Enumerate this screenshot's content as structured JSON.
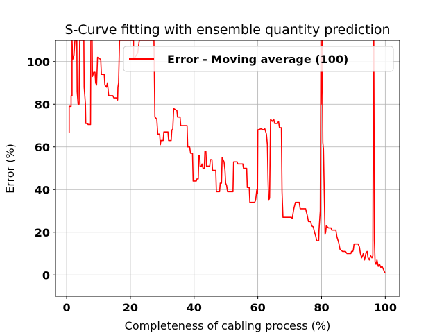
{
  "chart_data": {
    "type": "line",
    "title": "S-Curve fitting with ensemble quantity prediction",
    "xlabel": "Completeness of cabling process (%)",
    "ylabel": "Error (%)",
    "xlim": [
      -3.5,
      104.5
    ],
    "ylim": [
      -10,
      110
    ],
    "xticks": [
      0,
      20,
      40,
      60,
      80,
      100
    ],
    "yticks": [
      0,
      20,
      40,
      60,
      80,
      100
    ],
    "grid": true,
    "legend_position": "top-right",
    "series": [
      {
        "name": "Error - Moving average (100)",
        "color": "#ff0000",
        "points": [
          [
            0.8,
            66.5
          ],
          [
            0.8,
            79
          ],
          [
            1.4,
            79
          ],
          [
            1.4,
            84
          ],
          [
            1.7,
            84
          ],
          [
            1.7,
            110
          ],
          [
            1.9,
            101
          ],
          [
            2.3,
            103
          ],
          [
            2.6,
            110
          ],
          [
            3.2,
            110
          ],
          [
            3.3,
            86
          ],
          [
            3.6,
            80
          ],
          [
            3.9,
            80
          ],
          [
            4.1,
            110
          ],
          [
            5.4,
            110
          ],
          [
            5.5,
            88
          ],
          [
            5.9,
            80
          ],
          [
            6.0,
            71
          ],
          [
            6.6,
            71
          ],
          [
            6.7,
            70.5
          ],
          [
            7.5,
            70.5
          ],
          [
            7.6,
            110
          ],
          [
            8.0,
            110
          ],
          [
            8.1,
            93
          ],
          [
            8.5,
            95
          ],
          [
            8.9,
            95
          ],
          [
            9.1,
            90
          ],
          [
            9.4,
            89
          ],
          [
            9.7,
            102
          ],
          [
            10.7,
            101
          ],
          [
            10.9,
            94
          ],
          [
            11.8,
            94
          ],
          [
            12.0,
            89
          ],
          [
            12.5,
            88
          ],
          [
            12.8,
            90
          ],
          [
            13.2,
            84
          ],
          [
            14.5,
            84
          ],
          [
            14.8,
            83
          ],
          [
            15.6,
            83
          ],
          [
            16.0,
            82
          ],
          [
            16.1,
            88
          ],
          [
            16.3,
            90
          ],
          [
            16.6,
            110
          ],
          [
            21.0,
            110
          ],
          [
            21.0,
            101
          ],
          [
            22.3,
            104
          ],
          [
            22.8,
            110
          ],
          [
            27.4,
            110
          ],
          [
            27.7,
            74
          ],
          [
            28.3,
            73
          ],
          [
            28.6,
            66
          ],
          [
            29.2,
            66
          ],
          [
            29.4,
            61
          ],
          [
            29.6,
            63
          ],
          [
            30.3,
            63
          ],
          [
            30.5,
            67
          ],
          [
            31.8,
            67
          ],
          [
            32.0,
            63
          ],
          [
            32.8,
            63
          ],
          [
            33.0,
            68
          ],
          [
            33.3,
            68
          ],
          [
            33.6,
            78
          ],
          [
            34.6,
            77
          ],
          [
            34.8,
            74
          ],
          [
            35.6,
            74
          ],
          [
            35.8,
            70
          ],
          [
            37.8,
            70
          ],
          [
            38.0,
            60
          ],
          [
            38.6,
            60
          ],
          [
            38.9,
            57
          ],
          [
            39.5,
            57
          ],
          [
            39.7,
            44
          ],
          [
            40.7,
            44
          ],
          [
            40.9,
            45
          ],
          [
            41.3,
            45
          ],
          [
            41.5,
            56
          ],
          [
            41.8,
            56
          ],
          [
            41.9,
            51
          ],
          [
            42.3,
            51
          ],
          [
            42.5,
            52
          ],
          [
            42.8,
            50
          ],
          [
            43.2,
            50
          ],
          [
            43.4,
            58
          ],
          [
            43.7,
            58
          ],
          [
            43.9,
            51
          ],
          [
            44.9,
            51
          ],
          [
            45.1,
            54
          ],
          [
            45.6,
            54
          ],
          [
            45.8,
            49
          ],
          [
            46.8,
            49
          ],
          [
            47.0,
            39
          ],
          [
            48.0,
            39
          ],
          [
            48.2,
            43
          ],
          [
            48.6,
            43
          ],
          [
            48.8,
            55
          ],
          [
            49.4,
            53
          ],
          [
            49.7,
            49
          ],
          [
            49.9,
            43
          ],
          [
            50.2,
            42
          ],
          [
            50.5,
            39
          ],
          [
            52.2,
            39
          ],
          [
            52.4,
            53
          ],
          [
            53.5,
            53
          ],
          [
            53.7,
            52
          ],
          [
            55.3,
            52
          ],
          [
            55.5,
            50
          ],
          [
            56.5,
            50
          ],
          [
            56.7,
            41
          ],
          [
            57.3,
            41
          ],
          [
            57.5,
            34
          ],
          [
            59.0,
            34
          ],
          [
            59.3,
            35
          ],
          [
            59.7,
            40
          ],
          [
            59.9,
            38
          ],
          [
            60.0,
            68
          ],
          [
            61.0,
            68.5
          ],
          [
            61.7,
            68
          ],
          [
            62.2,
            68.5
          ],
          [
            62.7,
            66
          ],
          [
            63.0,
            61
          ],
          [
            63.2,
            45
          ],
          [
            63.4,
            35
          ],
          [
            63.7,
            36
          ],
          [
            63.8,
            48
          ],
          [
            64.0,
            73
          ],
          [
            64.5,
            72
          ],
          [
            65.0,
            73
          ],
          [
            65.3,
            71
          ],
          [
            66.2,
            71
          ],
          [
            66.5,
            72
          ],
          [
            66.8,
            69
          ],
          [
            67.4,
            69
          ],
          [
            67.6,
            39
          ],
          [
            67.9,
            27
          ],
          [
            70.5,
            27
          ],
          [
            70.8,
            26.5
          ],
          [
            71.3,
            31
          ],
          [
            71.8,
            34
          ],
          [
            73.0,
            34
          ],
          [
            73.3,
            31
          ],
          [
            75.0,
            31
          ],
          [
            75.5,
            28
          ],
          [
            75.9,
            25
          ],
          [
            76.6,
            25
          ],
          [
            76.9,
            23
          ],
          [
            77.4,
            22.5
          ],
          [
            77.8,
            20
          ],
          [
            78.2,
            18
          ],
          [
            78.5,
            16
          ],
          [
            79.1,
            16
          ],
          [
            79.2,
            21
          ],
          [
            79.6,
            30
          ],
          [
            79.8,
            110
          ],
          [
            79.9,
            80
          ],
          [
            80.2,
            110
          ],
          [
            80.4,
            62
          ],
          [
            80.6,
            59
          ],
          [
            80.8,
            43
          ],
          [
            81.1,
            19
          ],
          [
            81.3,
            20
          ],
          [
            81.5,
            23
          ],
          [
            82.2,
            22
          ],
          [
            83.0,
            22
          ],
          [
            83.2,
            21
          ],
          [
            84.5,
            21
          ],
          [
            84.8,
            18
          ],
          [
            85.4,
            15
          ],
          [
            85.8,
            12
          ],
          [
            86.6,
            11
          ],
          [
            87.5,
            11
          ],
          [
            88.0,
            10
          ],
          [
            89.2,
            10
          ],
          [
            89.4,
            11
          ],
          [
            89.8,
            11
          ],
          [
            90.0,
            12
          ],
          [
            90.2,
            14.5
          ],
          [
            91.5,
            14.5
          ],
          [
            91.9,
            13
          ],
          [
            92.2,
            10
          ],
          [
            92.6,
            8
          ],
          [
            93.1,
            10
          ],
          [
            93.5,
            7
          ],
          [
            93.9,
            10
          ],
          [
            94.3,
            11
          ],
          [
            94.6,
            8
          ],
          [
            95.0,
            7
          ],
          [
            95.4,
            9
          ],
          [
            95.8,
            8
          ],
          [
            96.1,
            9
          ],
          [
            96.3,
            110
          ],
          [
            96.4,
            110
          ],
          [
            96.6,
            16
          ],
          [
            96.8,
            6
          ],
          [
            97.1,
            5
          ],
          [
            97.4,
            7
          ],
          [
            97.8,
            4
          ],
          [
            98.2,
            5
          ],
          [
            98.6,
            3.5
          ],
          [
            99.0,
            4
          ],
          [
            99.3,
            3
          ],
          [
            99.6,
            2
          ],
          [
            99.9,
            1
          ]
        ]
      }
    ]
  }
}
